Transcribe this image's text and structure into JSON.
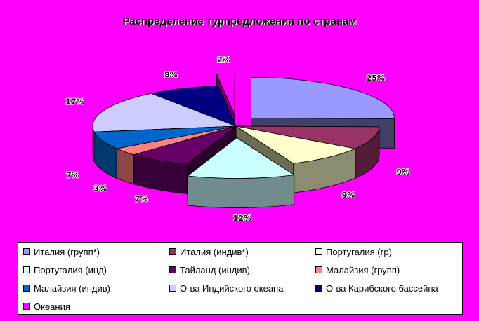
{
  "chart_data": {
    "type": "pie",
    "title": "Распределение турпредложения по странам",
    "categories": [
      "Италия (групп*)",
      "Италия (индив*)",
      "Португалия (гр)",
      "Португалия (инд)",
      "Тайланд (индив)",
      "Малайзия (групп)",
      "Малайзия (индив)",
      "О-ва Индийского океана",
      "О-ва Карибского бассейна",
      "Океания"
    ],
    "values": [
      25,
      9,
      9,
      12,
      7,
      3,
      7,
      17,
      8,
      2
    ],
    "labels": [
      "25%",
      "9%",
      "9%",
      "12%",
      "7%",
      "3%",
      "7%",
      "17%",
      "8%",
      "2%"
    ],
    "colors": [
      "#9999ff",
      "#993366",
      "#ffffcc",
      "#ccffff",
      "#660066",
      "#ff8080",
      "#0066cc",
      "#ccccff",
      "#000080",
      "#ff00ff"
    ],
    "legend_position": "bottom"
  }
}
